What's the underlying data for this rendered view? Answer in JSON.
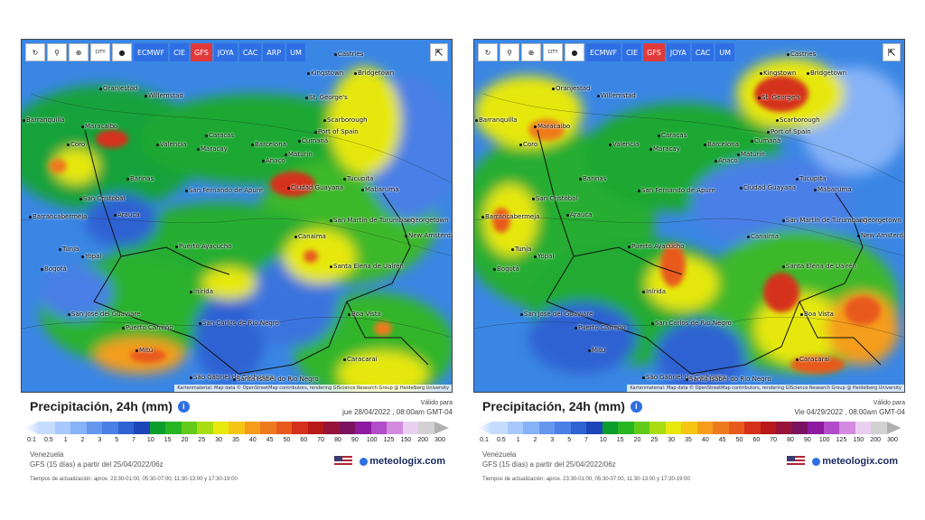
{
  "toolbar": {
    "tools": [
      {
        "name": "reload-icon",
        "glyph": "↻"
      },
      {
        "name": "location-pin-icon",
        "glyph": "⚲"
      },
      {
        "name": "zoom-icon",
        "glyph": "⊕"
      },
      {
        "name": "city-icon",
        "glyph": "CITY"
      },
      {
        "name": "dot-icon",
        "glyph": "●"
      }
    ],
    "models": [
      "ECMWF",
      "CIE",
      "GFS",
      "JOYA",
      "CAC",
      "ARP",
      "UM"
    ],
    "active_model": "GFS",
    "share_icon": "share-icon"
  },
  "places": [
    "Castries",
    "Kingstown",
    "Bridgetown",
    "Oranjestad",
    "Willemstad",
    "St. George's",
    "Scarborough",
    "Port of Spain",
    "Barranquilla",
    "Maracaibo",
    "Coro",
    "Valencia",
    "Caracas",
    "Maracay",
    "Barcelona",
    "Cumaná",
    "Maturín",
    "Anaco",
    "Barinas",
    "San Cristóbal",
    "San Fernando de Apure",
    "Ciudad Guayana",
    "Tucupita",
    "Mabaruma",
    "Barrancabermeja",
    "Arauca",
    "Georgetown",
    "San Martín de Turumbang",
    "New Amsterdam",
    "Canaima",
    "Puerto Ayacucho",
    "Tunja",
    "Yopal",
    "Bogotá",
    "Santa Elena de Uairén",
    "Inírida",
    "Boa Vista",
    "San José del Guaviare",
    "Puerto Carreño",
    "San Carlos de Río Negro",
    "Mitú",
    "São Gabriel da Cachoeira",
    "Santa Isabel do Rio Negro",
    "Caracaraí"
  ],
  "attribution": "Kartenmaterial: Map data © OpenStreetMap contributors, rendering GIScience Research Group @ Heidelberg University",
  "panels": [
    {
      "title": "Precipitación, 24h (mm)",
      "valid_label": "Válido para",
      "valid_date": "jue 28/04/2022 , 08:00am GMT-04",
      "region": "Venezuela",
      "run": "GFS (15 días) a partir del 25/04/2022/06z"
    },
    {
      "title": "Precipitación, 24h (mm)",
      "valid_label": "Válido para",
      "valid_date": "Vie 04/29/2022 , 08:00am GMT-04",
      "region": "Venezuela",
      "run": "GFS (15 días) a partir del 25/04/2022/06z"
    }
  ],
  "legend": {
    "ticks": [
      "0.1",
      "0.5",
      "1",
      "2",
      "3",
      "5",
      "7",
      "10",
      "15",
      "20",
      "25",
      "30",
      "35",
      "40",
      "45",
      "50",
      "60",
      "70",
      "80",
      "90",
      "100",
      "125",
      "150",
      "200",
      "300"
    ],
    "colors": [
      "#c6dcff",
      "#a8c8ff",
      "#86b2f7",
      "#6597ee",
      "#4a7fe6",
      "#2f62d3",
      "#1c46b8",
      "#0b9d2c",
      "#27b522",
      "#62cb1a",
      "#a9dc12",
      "#e6e80e",
      "#f5c613",
      "#f59d1b",
      "#ee7a1e",
      "#e85a1c",
      "#d5301a",
      "#b71818",
      "#971339",
      "#7a1260",
      "#8d1aa0",
      "#b24cc8",
      "#d38be0",
      "#ead0f0",
      "#d2d2d2"
    ]
  },
  "brand": {
    "name": "meteologix.com",
    "flag_icon": "us-flag-icon",
    "logo_icon": "meteologix-logo-icon"
  },
  "update_times": "Tiempos de actualización: aprox. 23:30-01:00, 05:30-07:00, 11:30-13:00 y 17:30-19:00",
  "colors": {
    "ocean": "#2f7de0",
    "accent": "#2f6fe3",
    "active": "#e23a3a"
  }
}
